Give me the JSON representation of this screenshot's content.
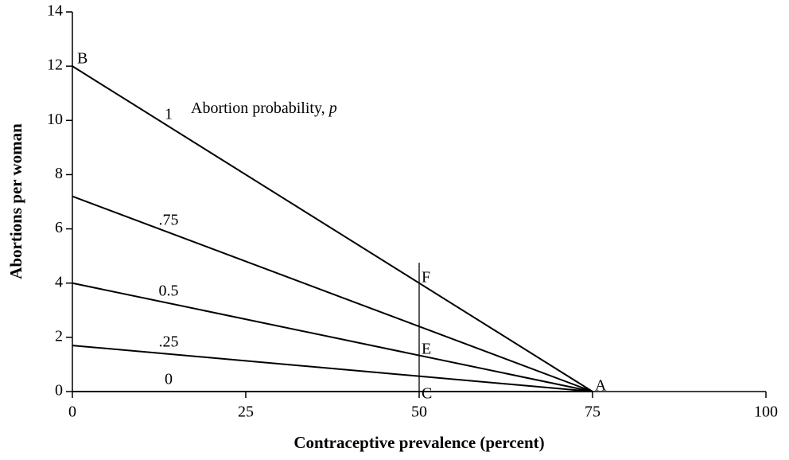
{
  "chart_data": {
    "type": "line",
    "xlabel": "Contraceptive prevalence (percent)",
    "ylabel": "Abortions per woman",
    "annotation": {
      "text": "Abortion probability,",
      "variable": "p"
    },
    "x": [
      0,
      75
    ],
    "series": [
      {
        "name": "1",
        "color": "#000000",
        "values": [
          12,
          0
        ]
      },
      {
        "name": ".75",
        "color": "#000000",
        "values": [
          7.2,
          0
        ]
      },
      {
        "name": "0.5",
        "color": "#000000",
        "values": [
          4,
          0
        ]
      },
      {
        "name": ".25",
        "color": "#000000",
        "values": [
          1.7,
          0
        ]
      },
      {
        "name": "0",
        "color": "#000000",
        "values": [
          0,
          0
        ]
      }
    ],
    "reference_line": {
      "x": 50,
      "y": [
        0,
        4.75
      ]
    },
    "point_labels": [
      "B",
      "F",
      "E",
      "C",
      "A"
    ],
    "xlim": [
      0,
      100
    ],
    "xticks": [
      0,
      25,
      50,
      75,
      100
    ],
    "ylim": [
      0,
      14
    ],
    "yticks": [
      0,
      2,
      4,
      6,
      8,
      10,
      12,
      14
    ],
    "grid": false
  }
}
